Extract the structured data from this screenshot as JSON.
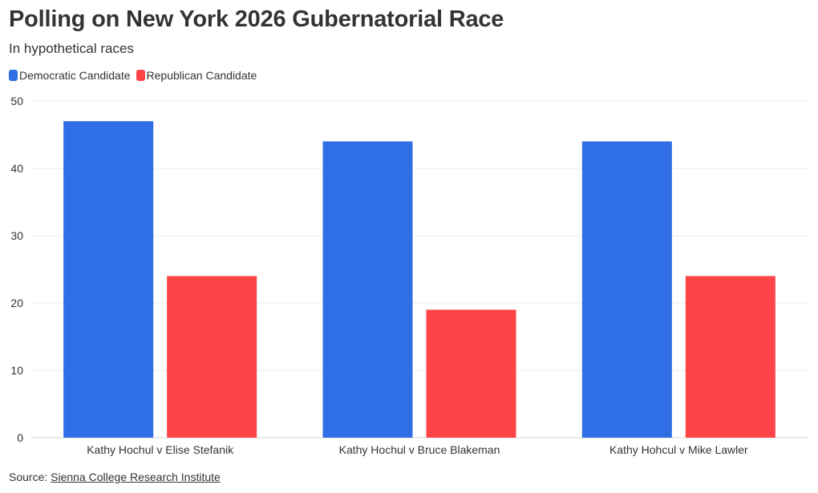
{
  "header": {
    "title": "Polling on New York 2026 Gubernatorial Race",
    "subtitle": "In hypothetical races"
  },
  "legend": {
    "items": [
      {
        "label": "Democratic Candidate",
        "color": "#2f6ee5"
      },
      {
        "label": "Republican Candidate",
        "color": "#ff4447"
      }
    ]
  },
  "footer": {
    "source_prefix": "Source:",
    "source_link": "Sienna College Research Institute"
  },
  "chart_data": {
    "type": "bar",
    "title": "Polling on New York 2026 Gubernatorial Race",
    "subtitle": "In hypothetical races",
    "categories": [
      "Kathy Hochul v Elise Stefanik",
      "Kathy Hochul v Bruce Blakeman",
      "Kathy Hohcul v Mike Lawler"
    ],
    "series": [
      {
        "name": "Democratic Candidate",
        "values": [
          47,
          44,
          44
        ],
        "color": "#2f6ee5"
      },
      {
        "name": "Republican Candidate",
        "values": [
          24,
          19,
          24
        ],
        "color": "#ff4447"
      }
    ],
    "yticks": [
      0,
      10,
      20,
      30,
      40,
      50
    ],
    "ylim": [
      0,
      50
    ],
    "xlabel": "",
    "ylabel": "",
    "grid": true,
    "legend_position": "top-left"
  }
}
